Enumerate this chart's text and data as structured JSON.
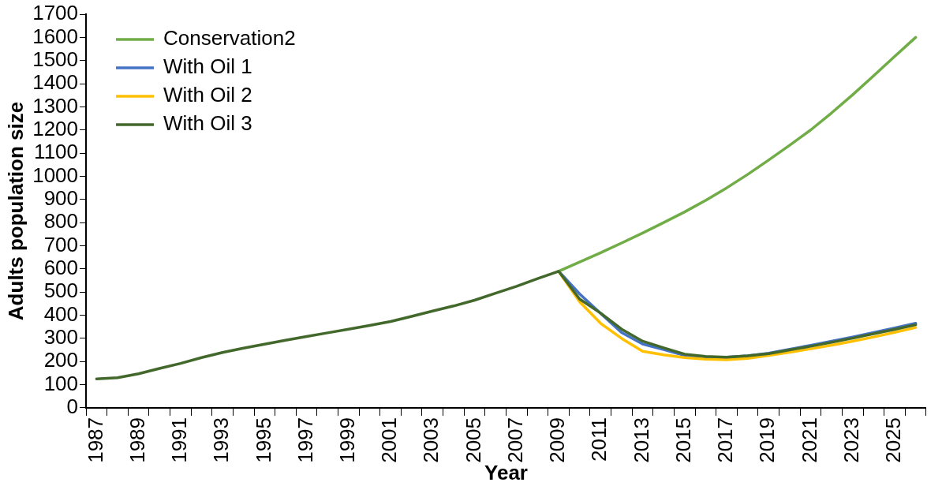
{
  "chart_data": {
    "type": "line",
    "xlabel": "Year",
    "ylabel": "Adults population size",
    "categories": [
      "1987",
      null,
      "1989",
      null,
      "1991",
      null,
      "1993",
      null,
      "1995",
      null,
      "1997",
      null,
      "1999",
      null,
      "2001",
      null,
      "2003",
      null,
      "2005",
      null,
      "2007",
      null,
      "2009",
      null,
      "2011",
      null,
      "2013",
      null,
      "2015",
      null,
      "2017",
      null,
      "2019",
      null,
      "2021",
      null,
      "2023",
      null,
      "2025",
      null
    ],
    "series": [
      {
        "name": "Conservation2",
        "color": "#70ad47",
        "values": [
          null,
          null,
          null,
          null,
          null,
          null,
          null,
          null,
          null,
          null,
          null,
          null,
          null,
          null,
          null,
          null,
          null,
          null,
          null,
          null,
          null,
          null,
          590,
          630,
          670,
          712,
          755,
          800,
          846,
          896,
          950,
          1008,
          1070,
          1134,
          1200,
          1274,
          1352,
          1434,
          1518,
          1600
        ]
      },
      {
        "name": "With Oil 1",
        "color": "#4472c4",
        "values": [
          null,
          null,
          null,
          null,
          null,
          null,
          null,
          null,
          null,
          null,
          null,
          null,
          null,
          null,
          null,
          null,
          null,
          null,
          null,
          null,
          null,
          null,
          590,
          492,
          408,
          325,
          276,
          252,
          226,
          220,
          219,
          225,
          236,
          253,
          270,
          288,
          306,
          325,
          345,
          365
        ]
      },
      {
        "name": "With Oil 2",
        "color": "#ffc000",
        "values": [
          null,
          null,
          null,
          null,
          null,
          null,
          null,
          null,
          null,
          null,
          null,
          null,
          null,
          null,
          null,
          null,
          null,
          null,
          null,
          null,
          null,
          null,
          590,
          458,
          365,
          300,
          244,
          229,
          217,
          210,
          208,
          214,
          226,
          240,
          255,
          271,
          288,
          306,
          326,
          347
        ]
      },
      {
        "name": "With Oil 3",
        "color": "#43682b",
        "values": [
          125,
          130,
          147,
          170,
          192,
          217,
          239,
          258,
          275,
          292,
          308,
          324,
          340,
          356,
          373,
          395,
          418,
          440,
          465,
          495,
          525,
          558,
          590,
          470,
          409,
          340,
          288,
          259,
          232,
          222,
          219,
          225,
          234,
          250,
          266,
          283,
          301,
          320,
          339,
          359
        ]
      }
    ],
    "ylim": [
      0,
      1700
    ],
    "yticks": [
      0,
      100,
      200,
      300,
      400,
      500,
      600,
      700,
      800,
      900,
      1000,
      1100,
      1200,
      1300,
      1400,
      1500,
      1600,
      1700
    ],
    "grid": false,
    "legend": "top left",
    "marker": "none",
    "line_style": "solid"
  }
}
